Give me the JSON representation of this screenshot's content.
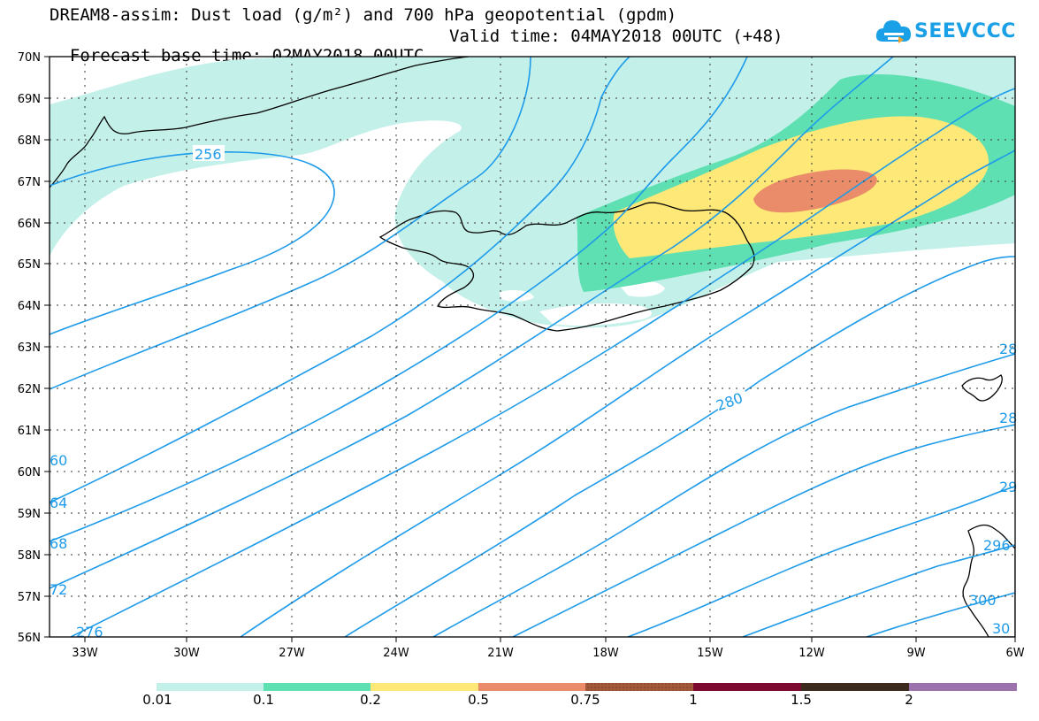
{
  "header": {
    "line1": "DREAM8-assim: Dust load (g/m²) and 700 hPa geopotential (gpdm)",
    "base_time": "Forecast base time: 02MAY2018 00UTC",
    "valid_time": "Valid time: 04MAY2018 00UTC (+48)"
  },
  "logo": {
    "text": "SEEVCCC",
    "icon": "cloud-icon"
  },
  "axes": {
    "lat_labels": [
      "70N",
      "69N",
      "68N",
      "67N",
      "66N",
      "65N",
      "64N",
      "63N",
      "62N",
      "61N",
      "60N",
      "59N",
      "58N",
      "57N",
      "56N"
    ],
    "lon_labels": [
      "33W",
      "30W",
      "27W",
      "24W",
      "21W",
      "18W",
      "15W",
      "12W",
      "9W",
      "6W"
    ]
  },
  "contours": {
    "color": "#1e9be9",
    "labels": [
      "256",
      "280",
      "28",
      "28",
      "29",
      "296",
      "300",
      "30",
      "60",
      "64",
      "68",
      "72",
      "276"
    ]
  },
  "colorbar": {
    "colors": [
      "#c4f0ea",
      "#5ee0b2",
      "#fde878",
      "#ea8c6a",
      "#a35a3a",
      "#7c0a2e",
      "#3b2a1e",
      "#9c72ac"
    ],
    "labels": [
      "0.01",
      "0.1",
      "0.2",
      "0.5",
      "0.75",
      "1",
      "1.5",
      "2"
    ]
  },
  "dust_colors": {
    "level1": "#c4f0ea",
    "level2": "#5ee0b2",
    "level3": "#fde878",
    "level4": "#ea8c6a"
  }
}
